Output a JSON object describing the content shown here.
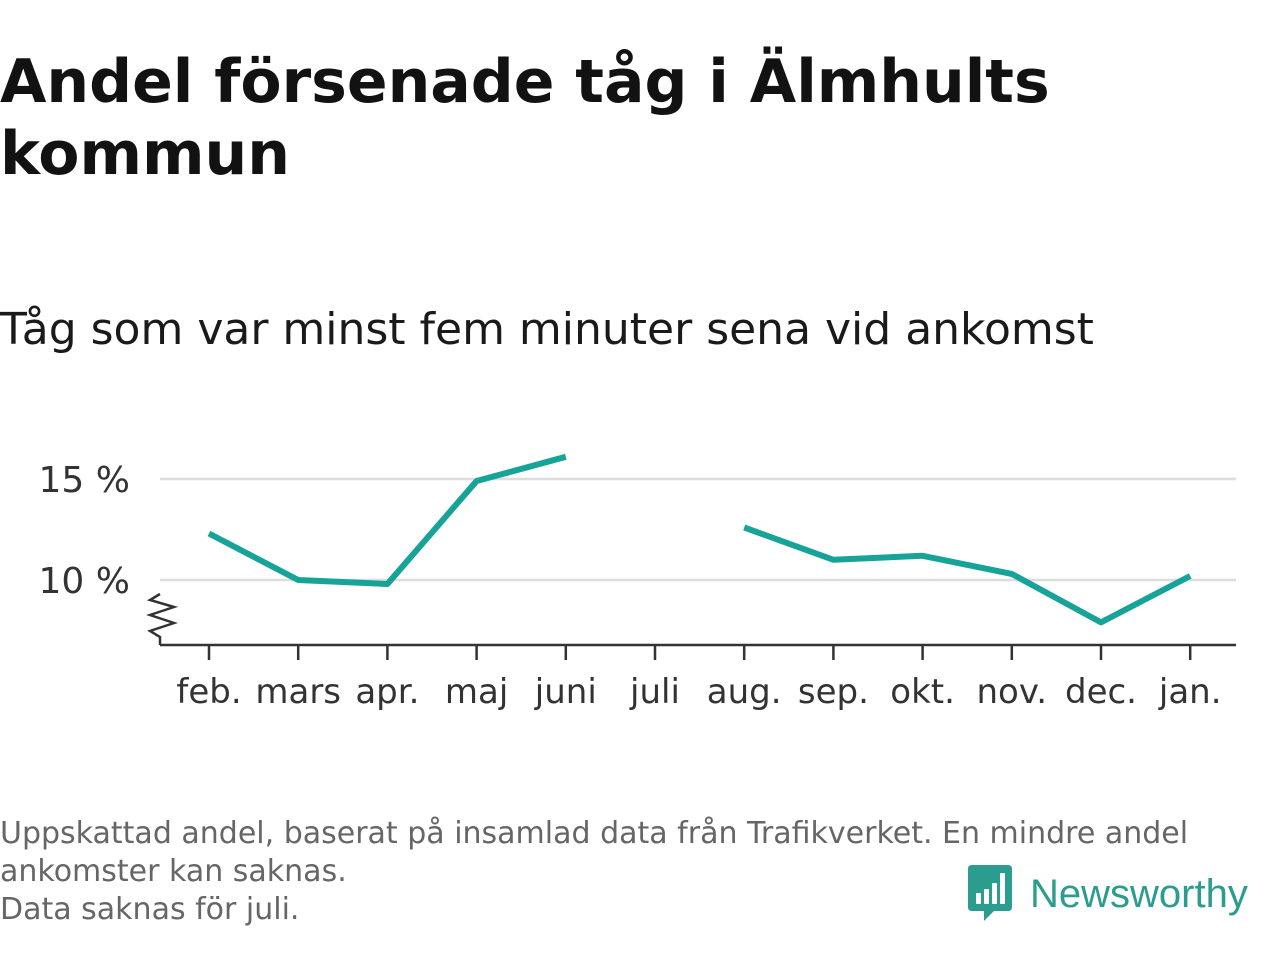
{
  "title": "Andel försenade tåg i Älmhults kommun",
  "subtitle": "Tåg som var minst fem minuter sena vid ankomst",
  "footnote": {
    "line1": "Uppskattad andel, baserat på insamlad data från Trafikverket. En mindre andel",
    "line2": "ankomster kan saknas.",
    "line3": "Data saknas för juli."
  },
  "brand": {
    "name": "Newsworthy",
    "icon": "newsworthy-logo-icon",
    "color": "#2a9d8f"
  },
  "chart_data": {
    "type": "line",
    "categories": [
      "feb.",
      "mars",
      "apr.",
      "maj",
      "juni",
      "juli",
      "aug.",
      "sep.",
      "okt.",
      "nov.",
      "dec.",
      "jan."
    ],
    "series": [
      {
        "values": [
          12.3,
          10.0,
          9.8,
          14.9,
          16.1,
          null,
          12.6,
          11.0,
          11.2,
          10.3,
          7.9,
          10.2
        ]
      }
    ],
    "yticks": [
      {
        "value": 10,
        "label": "10 %"
      },
      {
        "value": 15,
        "label": "15 %"
      }
    ],
    "ylim": [
      6.8,
      17
    ],
    "y_axis_break": true,
    "grid": true,
    "line_color": "#17a398",
    "grid_color": "#dddddd",
    "axis_color": "#333333"
  }
}
